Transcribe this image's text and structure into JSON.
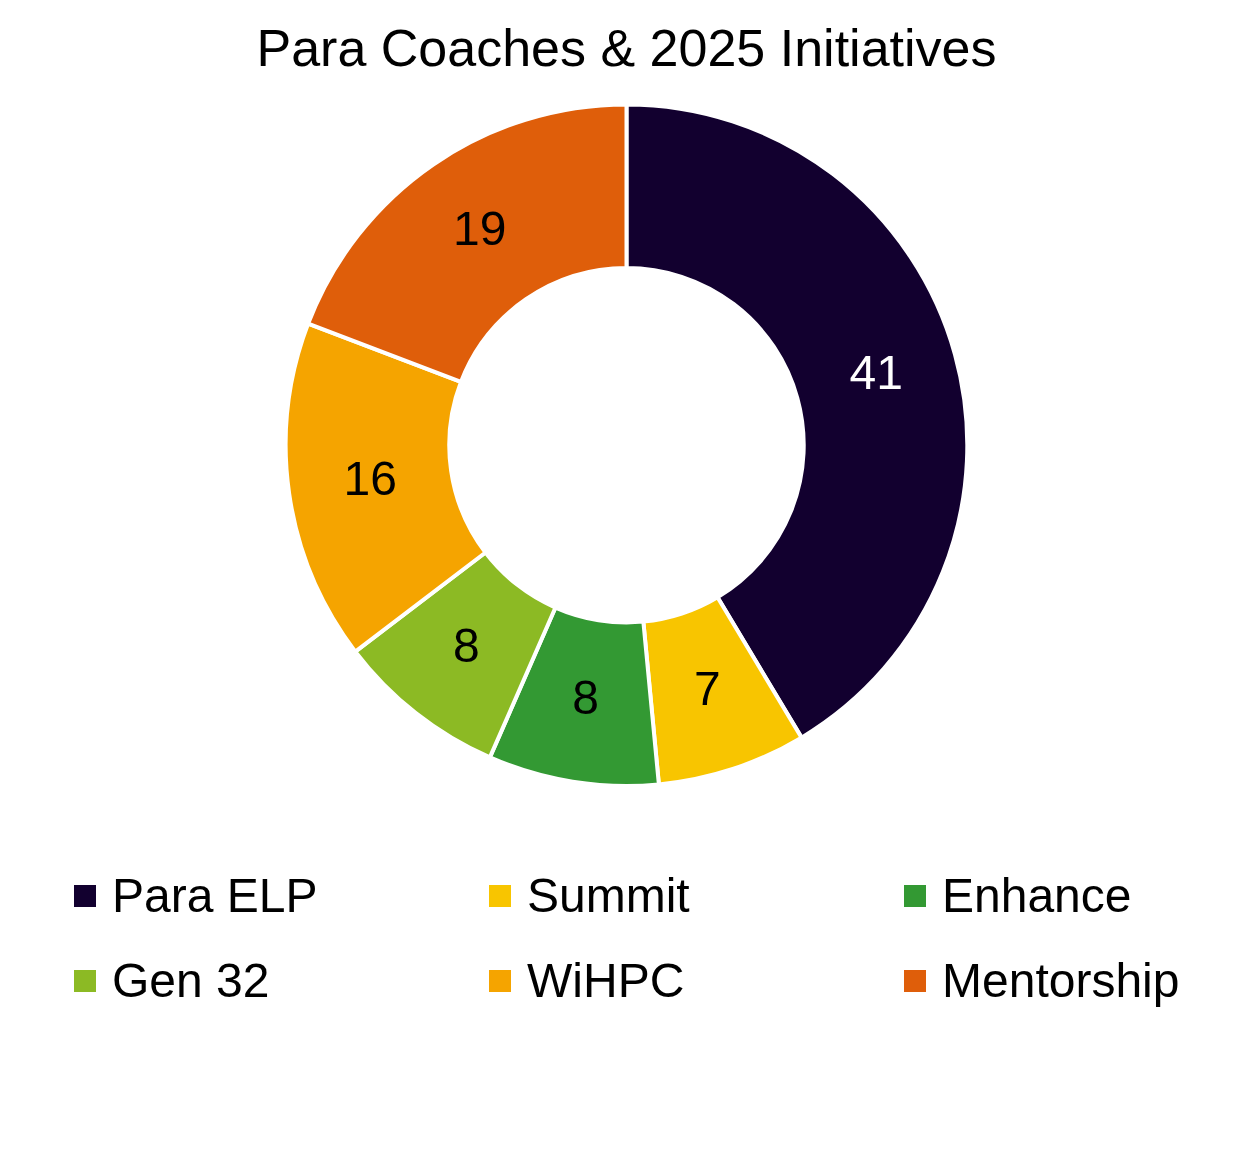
{
  "chart_data": {
    "type": "donut",
    "title": "Para Coaches & 2025 Initiatives",
    "categories": [
      "Para ELP",
      "Summit",
      "Enhance",
      "Gen 32",
      "WiHPC",
      "Mentorship"
    ],
    "values": [
      41,
      7,
      8,
      8,
      16,
      19
    ],
    "colors": [
      "#12002f",
      "#f8c500",
      "#339933",
      "#8cba24",
      "#f5a400",
      "#df5e0a"
    ],
    "data_labels": true,
    "legend": "bottom"
  }
}
